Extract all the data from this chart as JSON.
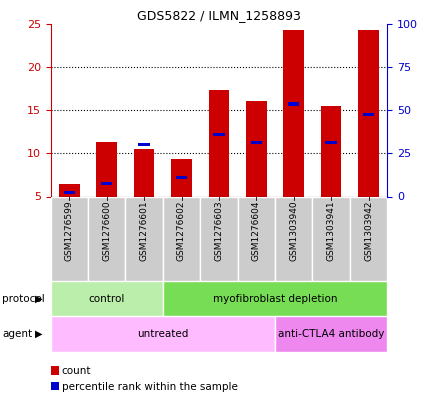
{
  "title": "GDS5822 / ILMN_1258893",
  "samples": [
    "GSM1276599",
    "GSM1276600",
    "GSM1276601",
    "GSM1276602",
    "GSM1276603",
    "GSM1276604",
    "GSM1303940",
    "GSM1303941",
    "GSM1303942"
  ],
  "count_values": [
    6.4,
    11.3,
    10.5,
    9.3,
    17.3,
    16.0,
    24.3,
    15.5,
    24.2
  ],
  "percentile_values": [
    5.5,
    6.5,
    11.0,
    7.2,
    12.2,
    11.2,
    15.7,
    11.2,
    14.5
  ],
  "y_min": 5,
  "y_max": 25,
  "y_ticks_left": [
    5,
    10,
    15,
    20,
    25
  ],
  "y_ticks_right": [
    0,
    25,
    50,
    75,
    100
  ],
  "bar_color": "#cc0000",
  "percentile_color": "#0000cc",
  "title_color": "#000000",
  "left_axis_color": "#cc0000",
  "right_axis_color": "#0000cc",
  "grid_color": "#000000",
  "protocol_items": [
    {
      "label": "control",
      "start": 0,
      "end": 3,
      "color": "#bbeeaa"
    },
    {
      "label": "myofibroblast depletion",
      "start": 3,
      "end": 9,
      "color": "#77dd55"
    }
  ],
  "agent_items": [
    {
      "label": "untreated",
      "start": 0,
      "end": 6,
      "color": "#ffbbff"
    },
    {
      "label": "anti-CTLA4 antibody",
      "start": 6,
      "end": 9,
      "color": "#ee88ee"
    }
  ],
  "bar_width": 0.55,
  "tick_bg_color": "#cccccc",
  "tick_sep_color": "#ffffff"
}
